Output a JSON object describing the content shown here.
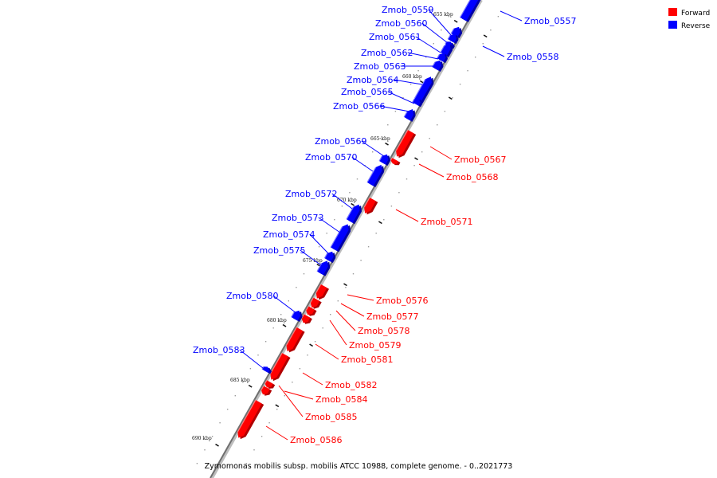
{
  "colors": {
    "forward": "#ff0000",
    "forward_dark": "#b00000",
    "forward_light": "#ff7a7a",
    "reverse": "#0000ff",
    "reverse_dark": "#0000a6",
    "reverse_light": "#7a7aff",
    "backbone": "#7a7a7a"
  },
  "legend": {
    "forward_label": "Forward",
    "reverse_label": "Reverse"
  },
  "caption": "Zymomonas mobilis subsp. mobilis ATCC 10988, complete genome. - 0..2021773",
  "ticks": [
    "655 kbp",
    "660 kbp",
    "665 kbp",
    "670 kbp",
    "675 kbp",
    "680 kbp",
    "685 kbp",
    "690 kbp"
  ],
  "genes": [
    {
      "name": "Zmob_0557",
      "strand": "reverse"
    },
    {
      "name": "Zmob_0558",
      "strand": "reverse"
    },
    {
      "name": "Zmob_0559",
      "strand": "reverse"
    },
    {
      "name": "Zmob_0560",
      "strand": "reverse"
    },
    {
      "name": "Zmob_0561",
      "strand": "reverse"
    },
    {
      "name": "Zmob_0562",
      "strand": "reverse"
    },
    {
      "name": "Zmob_0563",
      "strand": "reverse"
    },
    {
      "name": "Zmob_0564",
      "strand": "reverse"
    },
    {
      "name": "Zmob_0565",
      "strand": "reverse"
    },
    {
      "name": "Zmob_0566",
      "strand": "reverse"
    },
    {
      "name": "Zmob_0567",
      "strand": "forward"
    },
    {
      "name": "Zmob_0568",
      "strand": "forward"
    },
    {
      "name": "Zmob_0569",
      "strand": "reverse"
    },
    {
      "name": "Zmob_0570",
      "strand": "reverse"
    },
    {
      "name": "Zmob_0571",
      "strand": "forward"
    },
    {
      "name": "Zmob_0572",
      "strand": "reverse"
    },
    {
      "name": "Zmob_0573",
      "strand": "reverse"
    },
    {
      "name": "Zmob_0574",
      "strand": "reverse"
    },
    {
      "name": "Zmob_0575",
      "strand": "reverse"
    },
    {
      "name": "Zmob_0576",
      "strand": "forward"
    },
    {
      "name": "Zmob_0577",
      "strand": "forward"
    },
    {
      "name": "Zmob_0578",
      "strand": "forward"
    },
    {
      "name": "Zmob_0579",
      "strand": "forward"
    },
    {
      "name": "Zmob_0580",
      "strand": "reverse"
    },
    {
      "name": "Zmob_0581",
      "strand": "forward"
    },
    {
      "name": "Zmob_0582",
      "strand": "forward"
    },
    {
      "name": "Zmob_0583",
      "strand": "reverse"
    },
    {
      "name": "Zmob_0584",
      "strand": "forward"
    },
    {
      "name": "Zmob_0585",
      "strand": "forward"
    },
    {
      "name": "Zmob_0586",
      "strand": "forward"
    }
  ]
}
